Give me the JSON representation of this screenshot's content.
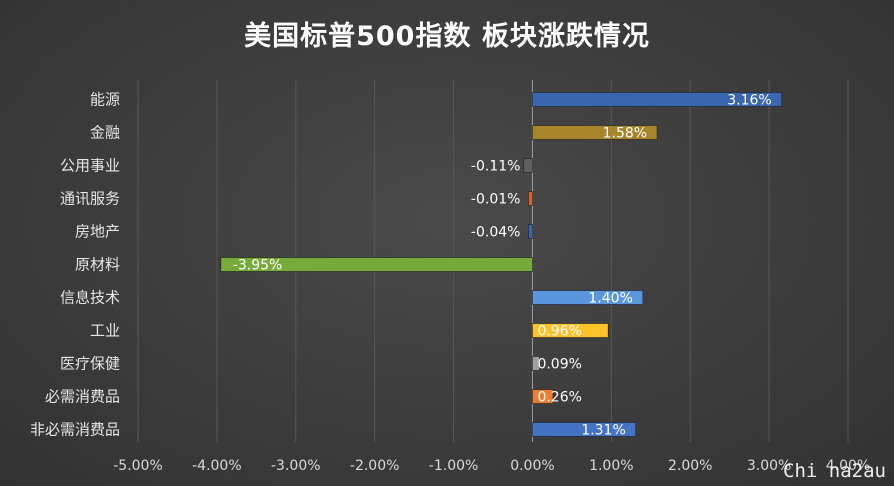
{
  "chart_data": {
    "type": "bar",
    "orientation": "horizontal",
    "title": "美国标普500指数 板块涨跌情况",
    "categories": [
      "能源",
      "金融",
      "公用事业",
      "通讯服务",
      "房地产",
      "原材料",
      "信息技术",
      "工业",
      "医疗保健",
      "必需消费品",
      "非必需消费品"
    ],
    "values": [
      3.16,
      1.58,
      -0.11,
      -0.01,
      -0.04,
      -3.95,
      1.4,
      0.96,
      0.09,
      0.26,
      1.31
    ],
    "data_labels": [
      "3.16%",
      "1.58%",
      "-0.11%",
      "-0.01%",
      "-0.04%",
      "-3.95%",
      "1.40%",
      "0.96%",
      "0.09%",
      "0.26%",
      "1.31%"
    ],
    "colors": [
      "#3a66b0",
      "#a8842a",
      "#5f5f5f",
      "#d0642c",
      "#3a66b0",
      "#76ab3c",
      "#5a96dc",
      "#ffc229",
      "#a0a0a0",
      "#ed7d31",
      "#4472c4"
    ],
    "xlim": [
      -5,
      4
    ],
    "x_ticks": [
      "-5.00%",
      "-4.00%",
      "-3.00%",
      "-2.00%",
      "-1.00%",
      "0.00%",
      "1.00%",
      "2.00%",
      "3.00%",
      "4.00%"
    ],
    "grid": true,
    "xlabel": "",
    "ylabel": ""
  },
  "watermark": "Chi na2au"
}
